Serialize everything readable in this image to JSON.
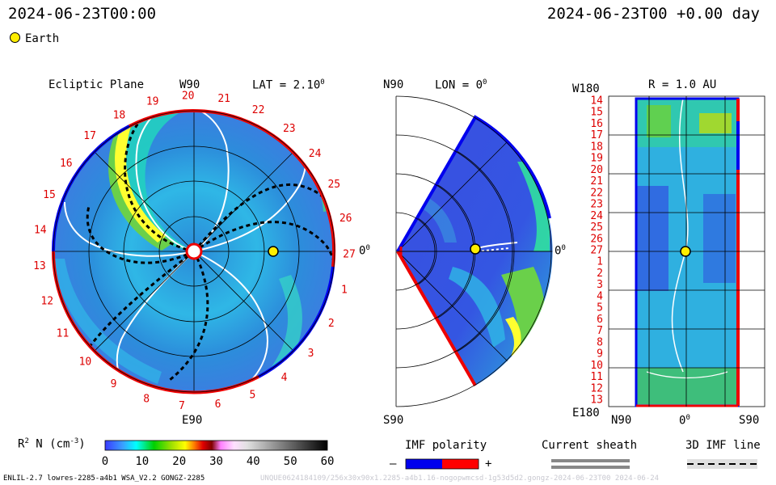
{
  "header": {
    "left_datetime": "2024-06-23T00:00",
    "right_datetime": "2024-06-23T00 +0.00 day",
    "legend_earth": "Earth"
  },
  "panels": {
    "ecliptic": {
      "title": "Ecliptic Plane",
      "lat_label": "LAT = 2.10",
      "lat_sup": "0",
      "top_label": "W90",
      "bottom_label": "E90",
      "right_label": "0",
      "right_sup": "0",
      "sector_numbers": [
        "19",
        "20",
        "21",
        "22",
        "23",
        "24",
        "25",
        "26",
        "27",
        "1",
        "2",
        "3",
        "4",
        "5",
        "6",
        "7",
        "8",
        "9",
        "10",
        "11",
        "12",
        "13",
        "14",
        "15",
        "16",
        "17",
        "18"
      ]
    },
    "meridional": {
      "top_label": "N90",
      "lon_label": "LON = 0",
      "lon_sup": "0",
      "right_label": "0",
      "right_sup": "0",
      "bottom_label": "S90"
    },
    "map": {
      "top_left_label": "W180",
      "r_label": "R = 1.0 AU",
      "bottom_left_label": "E180",
      "x_labels": [
        "N90",
        "0",
        "S90"
      ],
      "x_label_sup": "0",
      "y_labels": [
        "14",
        "15",
        "16",
        "17",
        "18",
        "19",
        "20",
        "21",
        "22",
        "23",
        "24",
        "25",
        "26",
        "27",
        "1",
        "2",
        "3",
        "4",
        "5",
        "6",
        "7",
        "8",
        "9",
        "10",
        "11",
        "12",
        "13"
      ]
    }
  },
  "colorbar": {
    "label": "R",
    "label_sup": "2",
    "label_rest": " N (cm",
    "label_exp": "-3",
    "label_end": ")",
    "ticks": [
      "0",
      "10",
      "20",
      "30",
      "40",
      "50",
      "60"
    ]
  },
  "imf": {
    "title": "IMF polarity",
    "minus": "–",
    "plus": "+",
    "neg_color": "#0000ee",
    "pos_color": "#ff0000"
  },
  "sheath": {
    "title": "Current sheath"
  },
  "imf_line": {
    "title": "3D IMF line"
  },
  "footer": {
    "left": "ENLIL-2.7 lowres-2285-a4b1 WSA_V2.2 GONGZ-2285",
    "right": "UNQUE0624184109/256x30x90x1.2285-a4b1.16-nogopwmcsd-1g53d5d2.gongz-2024-06-23T00   2024-06-24"
  },
  "chart_data": {
    "type": "heatmap",
    "title": "Ecliptic Plane",
    "quantity": "R2 N (cm-3)",
    "colorbar_range": [
      0,
      60
    ],
    "colorbar_ticks": [
      0,
      10,
      20,
      30,
      40,
      50,
      60
    ],
    "observer": "Earth",
    "observer_lat_deg": 2.1,
    "observer_lon_deg": 0,
    "radius_au": 1.0,
    "carrington_rotation_sectors": [
      19,
      20,
      21,
      22,
      23,
      24,
      25,
      26,
      27,
      1,
      2,
      3,
      4,
      5,
      6,
      7,
      8,
      9,
      10,
      11,
      12,
      13,
      14,
      15,
      16,
      17,
      18
    ],
    "time": "2024-06-23T00",
    "offset_day": 0.0
  }
}
